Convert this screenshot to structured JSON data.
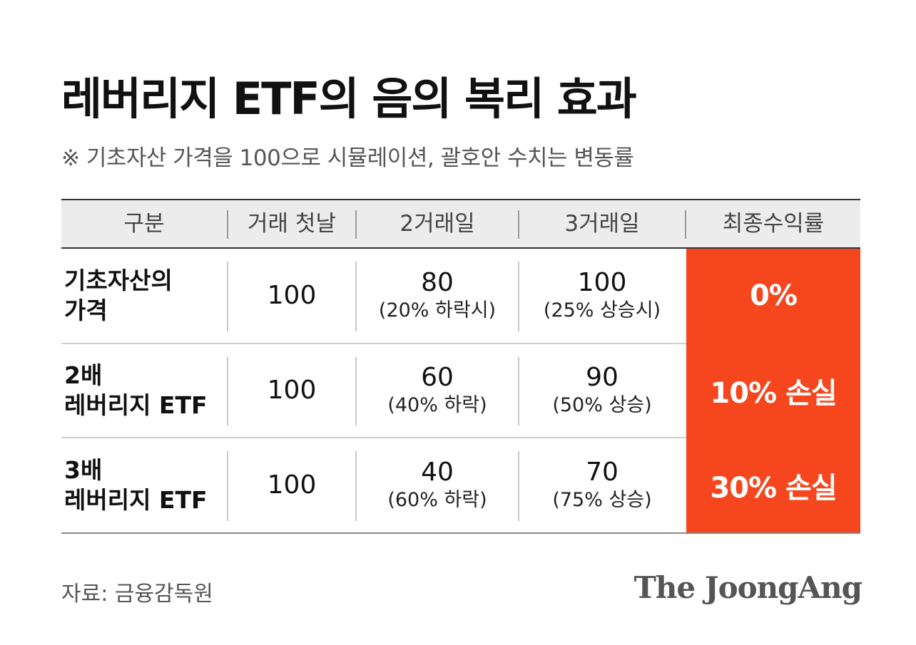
{
  "title": "레버리지 ETF의 음의 복리 효과",
  "subtitle": "※ 기초자산 가격을 100으로 시뮬레이션, 괄호안 수치는 변동률",
  "table": {
    "headers": [
      "구분",
      "거래 첫날",
      "2거래일",
      "3거래일",
      "최종수익률"
    ],
    "rows": [
      {
        "label_line1": "기초자산의",
        "label_line2": "가격",
        "day1": "100",
        "day2_value": "80",
        "day2_change": "(20% 하락시)",
        "day3_value": "100",
        "day3_change": "(25% 상승시)",
        "final": "0%"
      },
      {
        "label_line1": "2배",
        "label_line2": "레버리지 ETF",
        "day1": "100",
        "day2_value": "60",
        "day2_change": "(40% 하락)",
        "day3_value": "90",
        "day3_change": "(50% 상승)",
        "final": "10% 손실"
      },
      {
        "label_line1": "3배",
        "label_line2": "레버리지 ETF",
        "day1": "100",
        "day2_value": "40",
        "day2_change": "(60% 하락)",
        "day3_value": "70",
        "day3_change": "(75% 상승)",
        "final": "30% 손실"
      }
    ]
  },
  "source": "자료: 금융감독원",
  "brand": "The JoongAng",
  "colors": {
    "accent": "#f5461d",
    "header_bg": "#ececec",
    "text": "#111111"
  }
}
